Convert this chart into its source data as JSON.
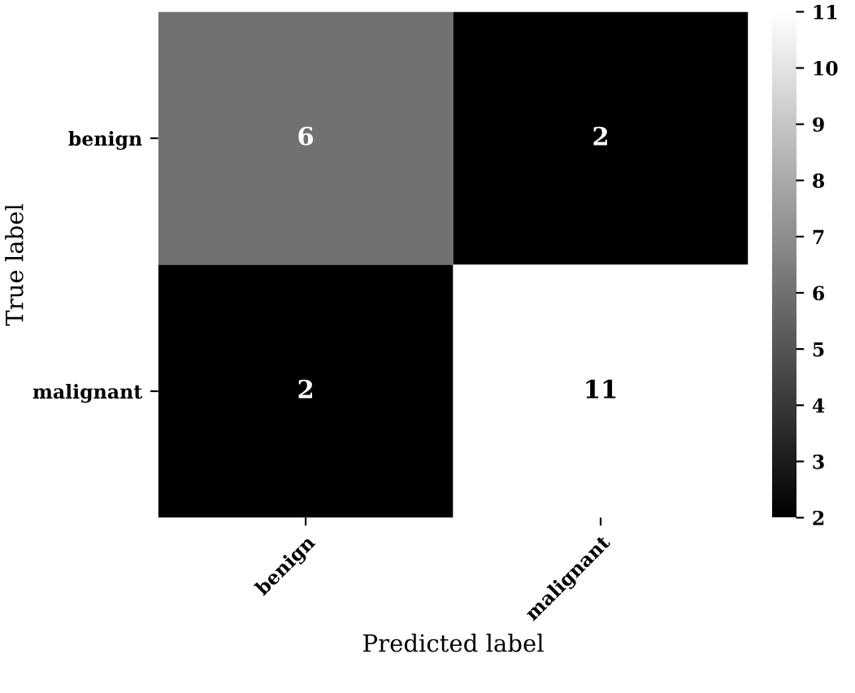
{
  "chart_data": {
    "type": "heatmap",
    "xlabel": "Predicted label",
    "ylabel": "True label",
    "categories": [
      "benign",
      "malignant"
    ],
    "y_categories": [
      "benign",
      "malignant"
    ],
    "cells": [
      [
        6,
        2
      ],
      [
        2,
        11
      ]
    ],
    "data_labels": true,
    "clim": [
      2,
      11
    ],
    "cticks": [
      2,
      3,
      4,
      5,
      6,
      7,
      8,
      9,
      10,
      11
    ],
    "grid": false
  }
}
